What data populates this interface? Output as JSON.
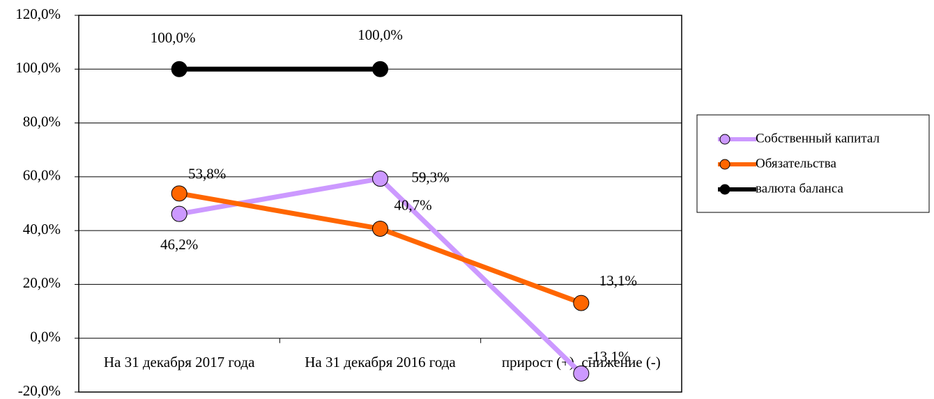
{
  "chart_data": {
    "type": "line",
    "categories": [
      "На 31 декабря 2017 года",
      "На 31 декабря 2016 года",
      "прирост (+), снижение (-)"
    ],
    "series": [
      {
        "name": "Собственный капитал",
        "color": "#cc99ff",
        "values": [
          46.2,
          59.3,
          -13.1
        ],
        "value_labels": [
          "46,2%",
          "59,3%",
          "-13,1%"
        ]
      },
      {
        "name": "Обязательства",
        "color": "#ff6600",
        "values": [
          53.8,
          40.7,
          13.1
        ],
        "value_labels": [
          "53,8%",
          "40,7%",
          "13,1%"
        ]
      },
      {
        "name": "валюта баланса",
        "color": "#000000",
        "values": [
          100,
          100,
          null
        ],
        "value_labels": [
          "100,0%",
          "100,0%",
          null
        ]
      }
    ],
    "ylim": [
      -20,
      120
    ],
    "yticks": [
      {
        "value": -20,
        "label": "-20,0%"
      },
      {
        "value": 0,
        "label": "0,0%"
      },
      {
        "value": 20,
        "label": "20,0%"
      },
      {
        "value": 40,
        "label": "40,0%"
      },
      {
        "value": 60,
        "label": "60,0%"
      },
      {
        "value": 80,
        "label": "80,0%"
      },
      {
        "value": 100,
        "label": "100,0%"
      },
      {
        "value": 120,
        "label": "120,0%"
      }
    ],
    "grid": true,
    "legend": "right"
  }
}
